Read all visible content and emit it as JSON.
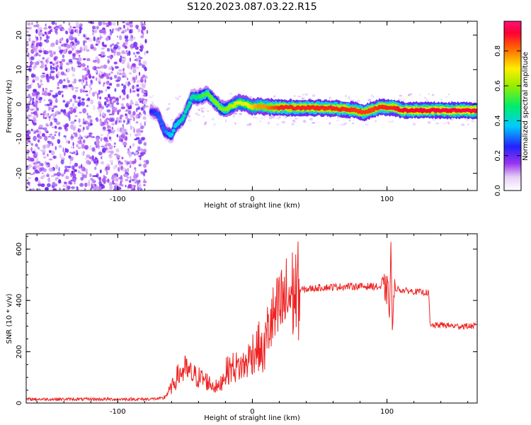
{
  "title": "S120.2023.087.03.22.R15",
  "chart_data": [
    {
      "type": "heatmap",
      "xlabel": "Height of straight line (km)",
      "ylabel": "Frequency (Hz)",
      "xlim": [
        -168,
        167
      ],
      "ylim": [
        -25,
        24
      ],
      "x_ticks": [
        -100,
        0,
        100
      ],
      "y_ticks": [
        -20,
        -10,
        0,
        10,
        20
      ],
      "colorbar": {
        "label": "Normalized spectral amplitude",
        "range": [
          0,
          0.97
        ],
        "ticks": [
          0.0,
          0.2,
          0.4,
          0.6,
          0.8
        ]
      },
      "ridge": [
        {
          "x": -75,
          "f": -2.0,
          "a": 0.25
        },
        {
          "x": -70,
          "f": -3.0,
          "a": 0.3
        },
        {
          "x": -65,
          "f": -8.0,
          "a": 0.32
        },
        {
          "x": -60,
          "f": -9.0,
          "a": 0.4
        },
        {
          "x": -57,
          "f": -6.0,
          "a": 0.4
        },
        {
          "x": -52,
          "f": -4.5,
          "a": 0.45
        },
        {
          "x": -48,
          "f": -1.0,
          "a": 0.45
        },
        {
          "x": -45,
          "f": 2.0,
          "a": 0.45
        },
        {
          "x": -40,
          "f": 2.0,
          "a": 0.5
        },
        {
          "x": -36,
          "f": 2.5,
          "a": 0.55
        },
        {
          "x": -33,
          "f": 3.0,
          "a": 0.55
        },
        {
          "x": -30,
          "f": 1.5,
          "a": 0.6
        },
        {
          "x": -27,
          "f": 0.5,
          "a": 0.6
        },
        {
          "x": -24,
          "f": -1.0,
          "a": 0.6
        },
        {
          "x": -20,
          "f": -1.5,
          "a": 0.6
        },
        {
          "x": -15,
          "f": -0.5,
          "a": 0.65
        },
        {
          "x": -10,
          "f": 0.5,
          "a": 0.7
        },
        {
          "x": -5,
          "f": 0.0,
          "a": 0.7
        },
        {
          "x": 0,
          "f": -0.8,
          "a": 0.75
        },
        {
          "x": 5,
          "f": -0.5,
          "a": 0.8
        },
        {
          "x": 10,
          "f": -0.8,
          "a": 0.8
        },
        {
          "x": 20,
          "f": -1.0,
          "a": 0.9
        },
        {
          "x": 40,
          "f": -1.0,
          "a": 0.9
        },
        {
          "x": 60,
          "f": -1.2,
          "a": 0.9
        },
        {
          "x": 70,
          "f": -1.5,
          "a": 0.9
        },
        {
          "x": 78,
          "f": -1.8,
          "a": 0.88
        },
        {
          "x": 82,
          "f": -2.5,
          "a": 0.88
        },
        {
          "x": 86,
          "f": -2.0,
          "a": 0.88
        },
        {
          "x": 90,
          "f": -1.5,
          "a": 0.88
        },
        {
          "x": 95,
          "f": -0.8,
          "a": 0.9
        },
        {
          "x": 105,
          "f": -1.0,
          "a": 0.9
        },
        {
          "x": 112,
          "f": -1.8,
          "a": 0.93
        },
        {
          "x": 140,
          "f": -1.8,
          "a": 0.95
        },
        {
          "x": 167,
          "f": -1.8,
          "a": 0.95
        }
      ]
    },
    {
      "type": "line",
      "xlabel": "Height of straight line (km)",
      "ylabel": "SNR (10 * v/v)",
      "xlim": [
        -168,
        167
      ],
      "ylim": [
        0,
        660
      ],
      "x_ticks": [
        -100,
        0,
        100
      ],
      "y_ticks": [
        0,
        200,
        400,
        600
      ],
      "color": "#ee2222",
      "series": [
        {
          "x": [
            -168,
            -120,
            -80,
            -66,
            -60,
            -55,
            -50,
            -45,
            -40,
            -35,
            -30,
            -25,
            -20,
            -15,
            -10,
            -5,
            0,
            5,
            8,
            12,
            15,
            18,
            22,
            28,
            35,
            50,
            70,
            90,
            96,
            100,
            102,
            103,
            104,
            106,
            110,
            120,
            131,
            132,
            140,
            150,
            160,
            167
          ],
          "y": [
            15,
            15,
            15,
            18,
            60,
            110,
            130,
            110,
            100,
            90,
            70,
            60,
            120,
            140,
            140,
            150,
            200,
            220,
            180,
            300,
            320,
            340,
            380,
            420,
            440,
            450,
            455,
            455,
            450,
            440,
            380,
            600,
            300,
            450,
            440,
            435,
            430,
            300,
            305,
            300,
            300,
            300
          ]
        }
      ]
    }
  ]
}
